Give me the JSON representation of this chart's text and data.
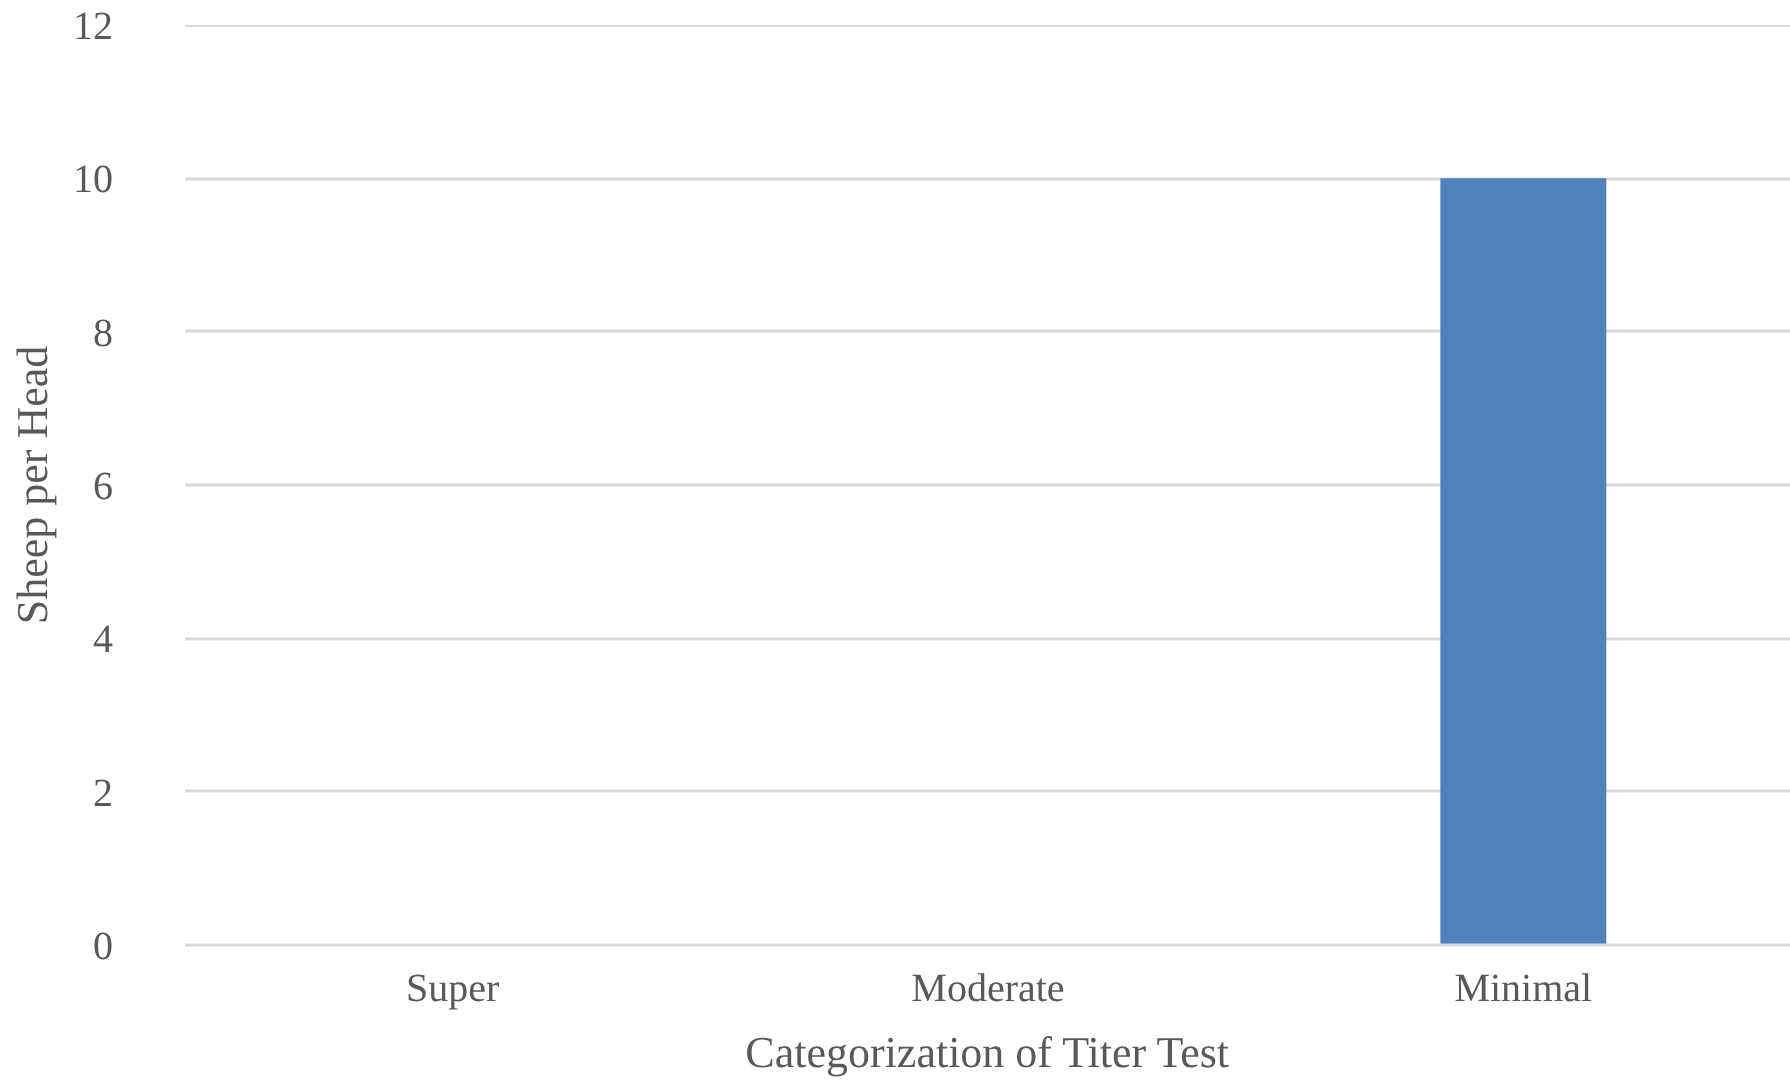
{
  "chart_data": {
    "type": "bar",
    "xlabel": "Categorization of Titer Test",
    "ylabel": "Sheep per Head",
    "categories": [
      "Super",
      "Moderate",
      "Minimal"
    ],
    "values": [
      0,
      0,
      10
    ],
    "color": "#4f81bd",
    "ylim": [
      0,
      12
    ],
    "yticks": [
      0,
      2,
      4,
      6,
      8,
      10,
      12
    ],
    "grid": "y"
  }
}
